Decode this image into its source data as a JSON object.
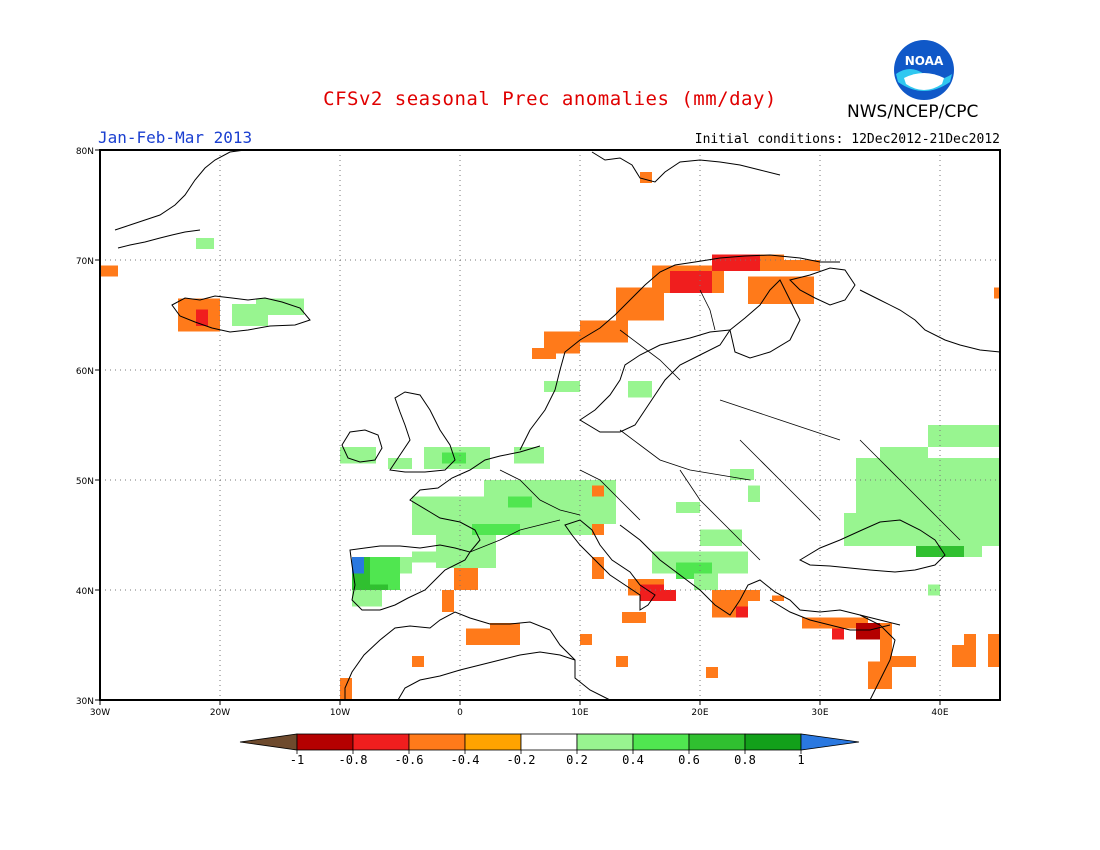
{
  "header": {
    "title": "CFSv2 seasonal Prec anomalies (mm/day)",
    "season": "Jan-Feb-Mar 2013",
    "initial_conditions": "Initial conditions: 12Dec2012-21Dec2012",
    "agency": "NWS/NCEP/CPC",
    "logo_text": "NOAA"
  },
  "map": {
    "lon_range": [
      -30,
      45
    ],
    "lat_range": [
      30,
      80
    ],
    "lat_ticks": [
      {
        "value": 80,
        "label": "80N"
      },
      {
        "value": 70,
        "label": "70N"
      },
      {
        "value": 60,
        "label": "60N"
      },
      {
        "value": 50,
        "label": "50N"
      },
      {
        "value": 40,
        "label": "40N"
      },
      {
        "value": 30,
        "label": "30N"
      }
    ],
    "lon_ticks": [
      {
        "value": -30,
        "label": "30W"
      },
      {
        "value": -20,
        "label": "20W"
      },
      {
        "value": -10,
        "label": "10W"
      },
      {
        "value": 0,
        "label": "0"
      },
      {
        "value": 10,
        "label": "10E"
      },
      {
        "value": 20,
        "label": "20E"
      },
      {
        "value": 30,
        "label": "30E"
      },
      {
        "value": 40,
        "label": "40E"
      }
    ],
    "grid": "dotted",
    "anomaly_regions": [
      {
        "lon": [
          -30,
          -28.5
        ],
        "lat": [
          68.5,
          69.5
        ],
        "cat": "n2"
      },
      {
        "lon": [
          -23.5,
          -20
        ],
        "lat": [
          63.5,
          66.5
        ],
        "cat": "n2"
      },
      {
        "lon": [
          -22,
          -21
        ],
        "lat": [
          64,
          65.5
        ],
        "cat": "n3"
      },
      {
        "lon": [
          -19,
          -16
        ],
        "lat": [
          64,
          66
        ],
        "cat": "p1"
      },
      {
        "lon": [
          -17,
          -13
        ],
        "lat": [
          65,
          66.5
        ],
        "cat": "p1"
      },
      {
        "lon": [
          -22,
          -20.5
        ],
        "lat": [
          71,
          72
        ],
        "cat": "p1"
      },
      {
        "lon": [
          -23,
          -22
        ],
        "lat": [
          65.5,
          66
        ],
        "cat": "n2"
      },
      {
        "lon": [
          15,
          16
        ],
        "lat": [
          77,
          78
        ],
        "cat": "n2"
      },
      {
        "lon": [
          16,
          22
        ],
        "lat": [
          67,
          69.5
        ],
        "cat": "n2"
      },
      {
        "lon": [
          17.5,
          21
        ],
        "lat": [
          67,
          69
        ],
        "cat": "n3"
      },
      {
        "lon": [
          21,
          25
        ],
        "lat": [
          69,
          70.5
        ],
        "cat": "n3"
      },
      {
        "lon": [
          25,
          27
        ],
        "lat": [
          69,
          70.5
        ],
        "cat": "n2"
      },
      {
        "lon": [
          27,
          30
        ],
        "lat": [
          69,
          70
        ],
        "cat": "n2"
      },
      {
        "lon": [
          13,
          17
        ],
        "lat": [
          64.5,
          67.5
        ],
        "cat": "n2"
      },
      {
        "lon": [
          10,
          14
        ],
        "lat": [
          62.5,
          64.5
        ],
        "cat": "n2"
      },
      {
        "lon": [
          7,
          10
        ],
        "lat": [
          61.5,
          63.5
        ],
        "cat": "n2"
      },
      {
        "lon": [
          6,
          8
        ],
        "lat": [
          61,
          62
        ],
        "cat": "n2"
      },
      {
        "lon": [
          24,
          29.5
        ],
        "lat": [
          66,
          68.5
        ],
        "cat": "n2"
      },
      {
        "lon": [
          44.5,
          45
        ],
        "lat": [
          66.5,
          67.5
        ],
        "cat": "n2"
      },
      {
        "lon": [
          7,
          10
        ],
        "lat": [
          58,
          59
        ],
        "cat": "p1"
      },
      {
        "lon": [
          14,
          16
        ],
        "lat": [
          57.5,
          59
        ],
        "cat": "p1"
      },
      {
        "lon": [
          -10,
          -7
        ],
        "lat": [
          51.5,
          53
        ],
        "cat": "p1"
      },
      {
        "lon": [
          -6,
          -4
        ],
        "lat": [
          51,
          52
        ],
        "cat": "p1"
      },
      {
        "lon": [
          -3,
          2.5
        ],
        "lat": [
          51,
          53
        ],
        "cat": "p1"
      },
      {
        "lon": [
          -1.5,
          0.5
        ],
        "lat": [
          51.5,
          52.5
        ],
        "cat": "p2"
      },
      {
        "lon": [
          4.5,
          7
        ],
        "lat": [
          51.5,
          53
        ],
        "cat": "p1"
      },
      {
        "lon": [
          2,
          13
        ],
        "lat": [
          48,
          50
        ],
        "cat": "p1"
      },
      {
        "lon": [
          -4,
          11
        ],
        "lat": [
          45,
          48.5
        ],
        "cat": "p1"
      },
      {
        "lon": [
          4,
          6
        ],
        "lat": [
          47.5,
          48.5
        ],
        "cat": "p2"
      },
      {
        "lon": [
          1,
          5
        ],
        "lat": [
          45,
          46
        ],
        "cat": "p2"
      },
      {
        "lon": [
          -2,
          3
        ],
        "lat": [
          42,
          45
        ],
        "cat": "p1"
      },
      {
        "lon": [
          11,
          13
        ],
        "lat": [
          46,
          48
        ],
        "cat": "p1"
      },
      {
        "lon": [
          18,
          20
        ],
        "lat": [
          47,
          48
        ],
        "cat": "p1"
      },
      {
        "lon": [
          20,
          23.5
        ],
        "lat": [
          44,
          45.5
        ],
        "cat": "p1"
      },
      {
        "lon": [
          16,
          24
        ],
        "lat": [
          41.5,
          43.5
        ],
        "cat": "p1"
      },
      {
        "lon": [
          18,
          21
        ],
        "lat": [
          41,
          42.5
        ],
        "cat": "p2"
      },
      {
        "lon": [
          19.5,
          21.5
        ],
        "lat": [
          40,
          41.5
        ],
        "cat": "p1"
      },
      {
        "lon": [
          22.5,
          24.5
        ],
        "lat": [
          50,
          51
        ],
        "cat": "p1"
      },
      {
        "lon": [
          24,
          25
        ],
        "lat": [
          48,
          49.5
        ],
        "cat": "p1"
      },
      {
        "lon": [
          33,
          45
        ],
        "lat": [
          47,
          52
        ],
        "cat": "p1"
      },
      {
        "lon": [
          35,
          39
        ],
        "lat": [
          52,
          53
        ],
        "cat": "p1"
      },
      {
        "lon": [
          39,
          45
        ],
        "lat": [
          53,
          55
        ],
        "cat": "p1"
      },
      {
        "lon": [
          35,
          45
        ],
        "lat": [
          44,
          47
        ],
        "cat": "p1"
      },
      {
        "lon": [
          32,
          35
        ],
        "lat": [
          44,
          47
        ],
        "cat": "p1"
      },
      {
        "lon": [
          38,
          42
        ],
        "lat": [
          43,
          44
        ],
        "cat": "p3"
      },
      {
        "lon": [
          42,
          43.5
        ],
        "lat": [
          43,
          44
        ],
        "cat": "p1"
      },
      {
        "lon": [
          39,
          40
        ],
        "lat": [
          39.5,
          40.5
        ],
        "cat": "p1"
      },
      {
        "lon": [
          -9,
          -7.5
        ],
        "lat": [
          39.5,
          43
        ],
        "cat": "p3"
      },
      {
        "lon": [
          -7.5,
          -5
        ],
        "lat": [
          40,
          43
        ],
        "cat": "p2"
      },
      {
        "lon": [
          -5,
          -4
        ],
        "lat": [
          41.5,
          43
        ],
        "cat": "p1"
      },
      {
        "lon": [
          -9,
          -6.5
        ],
        "lat": [
          38.5,
          40
        ],
        "cat": "p1"
      },
      {
        "lon": [
          -8,
          -6
        ],
        "lat": [
          40,
          40.5
        ],
        "cat": "p3"
      },
      {
        "lon": [
          -9,
          -8
        ],
        "lat": [
          41.5,
          43
        ],
        "cat": "p5"
      },
      {
        "lon": [
          -4,
          2
        ],
        "lat": [
          42.5,
          43.5
        ],
        "cat": "p1"
      },
      {
        "lon": [
          -0.5,
          1.5
        ],
        "lat": [
          40,
          42
        ],
        "cat": "n2"
      },
      {
        "lon": [
          -1.5,
          -0.5
        ],
        "lat": [
          38,
          40
        ],
        "cat": "n2"
      },
      {
        "lon": [
          0.5,
          5
        ],
        "lat": [
          35,
          36.5
        ],
        "cat": "n2"
      },
      {
        "lon": [
          2.5,
          5
        ],
        "lat": [
          36.5,
          37
        ],
        "cat": "n2"
      },
      {
        "lon": [
          -4,
          -3
        ],
        "lat": [
          33,
          34
        ],
        "cat": "n2"
      },
      {
        "lon": [
          -10,
          -9
        ],
        "lat": [
          30,
          32
        ],
        "cat": "n2"
      },
      {
        "lon": [
          11,
          12
        ],
        "lat": [
          45,
          46
        ],
        "cat": "n2"
      },
      {
        "lon": [
          11,
          12
        ],
        "lat": [
          41,
          43
        ],
        "cat": "n2"
      },
      {
        "lon": [
          14,
          17
        ],
        "lat": [
          39.5,
          41
        ],
        "cat": "n2"
      },
      {
        "lon": [
          15,
          17
        ],
        "lat": [
          39,
          40.5
        ],
        "cat": "n3"
      },
      {
        "lon": [
          17,
          18
        ],
        "lat": [
          39,
          40
        ],
        "cat": "n3"
      },
      {
        "lon": [
          13.5,
          15.5
        ],
        "lat": [
          37,
          38
        ],
        "cat": "n2"
      },
      {
        "lon": [
          10,
          11
        ],
        "lat": [
          35,
          36
        ],
        "cat": "n2"
      },
      {
        "lon": [
          21,
          24
        ],
        "lat": [
          37.5,
          40
        ],
        "cat": "n2"
      },
      {
        "lon": [
          23,
          24
        ],
        "lat": [
          37.5,
          38.5
        ],
        "cat": "n3"
      },
      {
        "lon": [
          23,
          25
        ],
        "lat": [
          39,
          40
        ],
        "cat": "n2"
      },
      {
        "lon": [
          26,
          27
        ],
        "lat": [
          39,
          39.5
        ],
        "cat": "n2"
      },
      {
        "lon": [
          28.5,
          34
        ],
        "lat": [
          36.5,
          37.5
        ],
        "cat": "n2"
      },
      {
        "lon": [
          33,
          35
        ],
        "lat": [
          35.5,
          37
        ],
        "cat": "n4"
      },
      {
        "lon": [
          31,
          32
        ],
        "lat": [
          35.5,
          36.5
        ],
        "cat": "n3"
      },
      {
        "lon": [
          35,
          36
        ],
        "lat": [
          33,
          37
        ],
        "cat": "n2"
      },
      {
        "lon": [
          34,
          36
        ],
        "lat": [
          31,
          33.5
        ],
        "cat": "n2"
      },
      {
        "lon": [
          36,
          38
        ],
        "lat": [
          33,
          34
        ],
        "cat": "n2"
      },
      {
        "lon": [
          41,
          43
        ],
        "lat": [
          33,
          35
        ],
        "cat": "n2"
      },
      {
        "lon": [
          42,
          43
        ],
        "lat": [
          34,
          36
        ],
        "cat": "n2"
      },
      {
        "lon": [
          44,
          45
        ],
        "lat": [
          33,
          36
        ],
        "cat": "n2"
      },
      {
        "lon": [
          20.5,
          21.5
        ],
        "lat": [
          32,
          33
        ],
        "cat": "n2"
      },
      {
        "lon": [
          13,
          14
        ],
        "lat": [
          33,
          34
        ],
        "cat": "n2"
      },
      {
        "lon": [
          11,
          12
        ],
        "lat": [
          48.5,
          49.5
        ],
        "cat": "n2"
      }
    ]
  },
  "colorbar": {
    "labels": [
      "-1",
      "-0.8",
      "-0.6",
      "-0.4",
      "-0.2",
      "0.2",
      "0.4",
      "0.6",
      "0.8",
      "1"
    ],
    "colors": {
      "lt_neg1": "#6e4a2d",
      "n4": "#b40000",
      "n3": "#f01e1e",
      "n2": "#ff7a1a",
      "n1": "#ffa300",
      "zero": "#ffffff",
      "p1": "#98f590",
      "p2": "#50e650",
      "p3": "#30c030",
      "p4": "#12a01a",
      "p5": "#2a78e0"
    }
  },
  "colors": {
    "title": "#e00000",
    "season": "#1a3fd0",
    "logo_blue": "#1058c8",
    "logo_cyan": "#30c8f0"
  }
}
